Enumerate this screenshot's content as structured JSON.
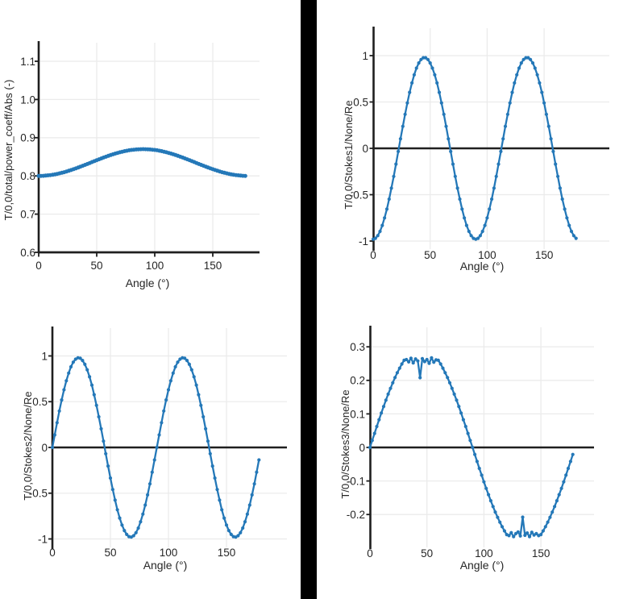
{
  "page": {
    "background": "#ffffff"
  },
  "divider": {
    "color": "#000000"
  },
  "colors": {
    "series": "#2478b8",
    "axis": "#1f1f1f",
    "tick_label": "#262626",
    "grid": "#ebebeb"
  },
  "chart_data": [
    {
      "type": "line",
      "title": "",
      "xlabel": "Angle (°)",
      "ylabel": "T/0,0/total/power_coeff/Abs (-)",
      "xlim": [
        0,
        190
      ],
      "ylim": [
        0.6,
        1.15
      ],
      "xticks": [
        0,
        50,
        100,
        150
      ],
      "xtick_labels": [
        "0",
        "50",
        "100",
        "150"
      ],
      "yticks": [
        0.6,
        0.7,
        0.8,
        0.9,
        1.0,
        1.1
      ],
      "ytick_labels": [
        "0.6",
        "0.7",
        "0.8",
        "0.9",
        "1.0",
        "1.1"
      ],
      "grid": true,
      "legend": null,
      "marker": "circle",
      "zero_axis": false,
      "x": [
        0,
        2,
        4,
        6,
        8,
        10,
        12,
        14,
        16,
        18,
        20,
        22,
        24,
        26,
        28,
        30,
        32,
        34,
        36,
        38,
        40,
        42,
        44,
        46,
        48,
        50,
        52,
        54,
        56,
        58,
        60,
        62,
        64,
        66,
        68,
        70,
        72,
        74,
        76,
        78,
        80,
        82,
        84,
        86,
        88,
        90,
        92,
        94,
        96,
        98,
        100,
        102,
        104,
        106,
        108,
        110,
        112,
        114,
        116,
        118,
        120,
        122,
        124,
        126,
        128,
        130,
        132,
        134,
        136,
        138,
        140,
        142,
        144,
        146,
        148,
        150,
        152,
        154,
        156,
        158,
        160,
        162,
        164,
        166,
        168,
        170,
        172,
        174,
        176,
        178
      ],
      "y": [
        0.8,
        0.8001,
        0.8003,
        0.8008,
        0.8014,
        0.8021,
        0.803,
        0.8041,
        0.8053,
        0.8067,
        0.8082,
        0.8098,
        0.8116,
        0.8135,
        0.8154,
        0.8175,
        0.8197,
        0.8219,
        0.8242,
        0.8265,
        0.8289,
        0.8313,
        0.8338,
        0.8362,
        0.8387,
        0.8411,
        0.8435,
        0.8458,
        0.8481,
        0.8503,
        0.8525,
        0.8546,
        0.8565,
        0.8584,
        0.8602,
        0.8618,
        0.8633,
        0.8647,
        0.8659,
        0.867,
        0.8679,
        0.8686,
        0.8692,
        0.8697,
        0.8699,
        0.87,
        0.8699,
        0.8697,
        0.8692,
        0.8686,
        0.8679,
        0.867,
        0.8659,
        0.8647,
        0.8633,
        0.8618,
        0.8602,
        0.8584,
        0.8565,
        0.8546,
        0.8525,
        0.8503,
        0.8481,
        0.8458,
        0.8435,
        0.8411,
        0.8387,
        0.8362,
        0.8338,
        0.8313,
        0.8289,
        0.8265,
        0.8242,
        0.8219,
        0.8197,
        0.8175,
        0.8154,
        0.8135,
        0.8116,
        0.8098,
        0.8082,
        0.8067,
        0.8053,
        0.8041,
        0.803,
        0.8021,
        0.8014,
        0.8008,
        0.8003,
        0.8001
      ]
    },
    {
      "type": "line",
      "title": "",
      "xlabel": "Angle (°)",
      "ylabel": "T/0,0/Stokes1/None/Re",
      "xlim": [
        0,
        207
      ],
      "ylim": [
        -1.1,
        1.3
      ],
      "xticks": [
        0,
        50,
        100,
        150
      ],
      "xtick_labels": [
        "0",
        "50",
        "100",
        "150"
      ],
      "yticks": [
        -1,
        -0.5,
        0,
        0.5,
        1
      ],
      "ytick_labels": [
        "-1",
        "-0.5",
        "0",
        "0.5",
        "1"
      ],
      "grid": true,
      "legend": null,
      "marker": "circle",
      "zero_axis": true,
      "x": [
        0,
        2,
        4,
        6,
        8,
        10,
        12,
        14,
        16,
        18,
        20,
        22,
        24,
        26,
        28,
        30,
        32,
        34,
        36,
        38,
        40,
        42,
        44,
        46,
        48,
        50,
        52,
        54,
        56,
        58,
        60,
        62,
        64,
        66,
        68,
        70,
        72,
        74,
        76,
        78,
        80,
        82,
        84,
        86,
        88,
        90,
        92,
        94,
        96,
        98,
        100,
        102,
        104,
        106,
        108,
        110,
        112,
        114,
        116,
        118,
        120,
        122,
        124,
        126,
        128,
        130,
        132,
        134,
        136,
        138,
        140,
        142,
        144,
        146,
        148,
        150,
        152,
        154,
        156,
        158,
        160,
        162,
        164,
        166,
        168,
        170,
        172,
        174,
        176,
        178
      ],
      "y": [
        -0.98,
        -0.9705,
        -0.942,
        -0.8953,
        -0.8311,
        -0.7507,
        -0.6557,
        -0.548,
        -0.4296,
        -0.3028,
        -0.1702,
        -0.0342,
        0.1024,
        0.2371,
        0.3671,
        0.49,
        0.6033,
        0.705,
        0.7928,
        0.8653,
        0.9209,
        0.9586,
        0.9776,
        0.9776,
        0.9586,
        0.9209,
        0.8653,
        0.7928,
        0.705,
        0.6033,
        0.49,
        0.3671,
        0.2371,
        0.1024,
        -0.0342,
        -0.1702,
        -0.3028,
        -0.4296,
        -0.548,
        -0.6557,
        -0.7507,
        -0.8311,
        -0.8953,
        -0.942,
        -0.9705,
        -0.98,
        -0.9705,
        -0.942,
        -0.8953,
        -0.8311,
        -0.7507,
        -0.6557,
        -0.548,
        -0.4296,
        -0.3028,
        -0.1702,
        -0.0342,
        0.1024,
        0.2371,
        0.3671,
        0.49,
        0.6033,
        0.705,
        0.7928,
        0.8653,
        0.9209,
        0.9586,
        0.9776,
        0.9776,
        0.9586,
        0.9209,
        0.8653,
        0.7928,
        0.705,
        0.6033,
        0.49,
        0.3671,
        0.2371,
        0.1024,
        -0.0342,
        -0.1702,
        -0.3028,
        -0.4296,
        -0.548,
        -0.6557,
        -0.7507,
        -0.8311,
        -0.8953,
        -0.942,
        -0.9705
      ]
    },
    {
      "type": "line",
      "title": "",
      "xlabel": "Angle (°)",
      "ylabel": "T/0,0/Stokes2/None/Re",
      "xlim": [
        0,
        202
      ],
      "ylim": [
        -1.1,
        1.3
      ],
      "xticks": [
        0,
        50,
        100,
        150
      ],
      "xtick_labels": [
        "0",
        "50",
        "100",
        "150"
      ],
      "yticks": [
        -1,
        -0.5,
        0,
        0.5,
        1
      ],
      "ytick_labels": [
        "-1",
        "-0.5",
        "0",
        "0.5",
        "1"
      ],
      "grid": true,
      "legend": null,
      "marker": "circle",
      "zero_axis": true,
      "x": [
        0,
        2,
        4,
        6,
        8,
        10,
        12,
        14,
        16,
        18,
        20,
        22,
        24,
        26,
        28,
        30,
        32,
        34,
        36,
        38,
        40,
        42,
        44,
        46,
        48,
        50,
        52,
        54,
        56,
        58,
        60,
        62,
        64,
        66,
        68,
        70,
        72,
        74,
        76,
        78,
        80,
        82,
        84,
        86,
        88,
        90,
        92,
        94,
        96,
        98,
        100,
        102,
        104,
        106,
        108,
        110,
        112,
        114,
        116,
        118,
        120,
        122,
        124,
        126,
        128,
        130,
        132,
        134,
        136,
        138,
        140,
        142,
        144,
        146,
        148,
        150,
        152,
        154,
        156,
        158,
        160,
        162,
        164,
        166,
        168,
        170,
        172,
        174,
        176,
        178
      ],
      "y": [
        0,
        0.1364,
        0.2701,
        0.3986,
        0.5193,
        0.6299,
        0.7283,
        0.8125,
        0.8808,
        0.932,
        0.9651,
        0.9794,
        0.9746,
        0.9509,
        0.9086,
        0.8487,
        0.7722,
        0.6808,
        0.576,
        0.4601,
        0.3352,
        0.2038,
        0.0684,
        -0.0684,
        -0.2038,
        -0.3352,
        -0.4601,
        -0.576,
        -0.6808,
        -0.7722,
        -0.8487,
        -0.9086,
        -0.9509,
        -0.9746,
        -0.9794,
        -0.9651,
        -0.932,
        -0.8808,
        -0.8125,
        -0.7283,
        -0.6299,
        -0.5193,
        -0.3986,
        -0.2701,
        -0.1364,
        0,
        0.1364,
        0.2701,
        0.3986,
        0.5193,
        0.6299,
        0.7283,
        0.8125,
        0.8808,
        0.932,
        0.9651,
        0.9794,
        0.9746,
        0.9509,
        0.9086,
        0.8487,
        0.7722,
        0.6808,
        0.576,
        0.4601,
        0.3352,
        0.2038,
        0.0684,
        -0.0684,
        -0.2038,
        -0.3352,
        -0.4601,
        -0.576,
        -0.6808,
        -0.7722,
        -0.8487,
        -0.9086,
        -0.9509,
        -0.9746,
        -0.9794,
        -0.9651,
        -0.932,
        -0.8808,
        -0.8125,
        -0.7283,
        -0.6299,
        -0.5193,
        -0.3986,
        -0.2701,
        -0.1364
      ]
    },
    {
      "type": "line",
      "title": "",
      "xlabel": "Angle (°)",
      "ylabel": "T/0,0/Stokes3/None/Re",
      "xlim": [
        0,
        197
      ],
      "ylim": [
        -0.3,
        0.36
      ],
      "xticks": [
        0,
        50,
        100,
        150
      ],
      "xtick_labels": [
        "0",
        "50",
        "100",
        "150"
      ],
      "yticks": [
        -0.2,
        -0.1,
        0,
        0.1,
        0.2,
        0.3
      ],
      "ytick_labels": [
        "-0.2",
        "-0.1",
        "0",
        "0.1",
        "0.2",
        "0.3"
      ],
      "grid": true,
      "legend": null,
      "marker": "circle",
      "zero_axis": true,
      "x": [
        0,
        2,
        4,
        6,
        8,
        10,
        12,
        14,
        16,
        18,
        20,
        22,
        24,
        26,
        28,
        30,
        32,
        34,
        36,
        38,
        40,
        42,
        44,
        46,
        48,
        50,
        52,
        54,
        56,
        58,
        60,
        62,
        64,
        66,
        68,
        70,
        72,
        74,
        76,
        78,
        80,
        82,
        84,
        86,
        88,
        90,
        92,
        94,
        96,
        98,
        100,
        102,
        104,
        106,
        108,
        110,
        112,
        114,
        116,
        118,
        120,
        122,
        124,
        126,
        128,
        130,
        132,
        134,
        136,
        138,
        140,
        142,
        144,
        146,
        148,
        150,
        152,
        154,
        156,
        158,
        160,
        162,
        164,
        166,
        168,
        170,
        172,
        174,
        176,
        178
      ],
      "y": [
        0,
        0.0209,
        0.0418,
        0.0624,
        0.0827,
        0.1026,
        0.122,
        0.1408,
        0.159,
        0.1763,
        0.1928,
        0.2084,
        0.2229,
        0.2364,
        0.2487,
        0.2598,
        0.262,
        0.255,
        0.266,
        0.252,
        0.264,
        0.258,
        0.208,
        0.265,
        0.256,
        0.262,
        0.251,
        0.267,
        0.254,
        0.261,
        0.2598,
        0.2487,
        0.2364,
        0.2229,
        0.2084,
        0.1928,
        0.1763,
        0.159,
        0.1408,
        0.122,
        0.1026,
        0.0827,
        0.0624,
        0.0418,
        0.0209,
        0,
        -0.0209,
        -0.0418,
        -0.0624,
        -0.0827,
        -0.1026,
        -0.122,
        -0.1408,
        -0.159,
        -0.1763,
        -0.1928,
        -0.2084,
        -0.2229,
        -0.2364,
        -0.2487,
        -0.2598,
        -0.263,
        -0.254,
        -0.266,
        -0.257,
        -0.252,
        -0.264,
        -0.208,
        -0.262,
        -0.255,
        -0.266,
        -0.253,
        -0.261,
        -0.257,
        -0.263,
        -0.2598,
        -0.2487,
        -0.2364,
        -0.2229,
        -0.2084,
        -0.1928,
        -0.1763,
        -0.159,
        -0.1408,
        -0.122,
        -0.1026,
        -0.0827,
        -0.0624,
        -0.0418,
        -0.0209
      ]
    }
  ]
}
